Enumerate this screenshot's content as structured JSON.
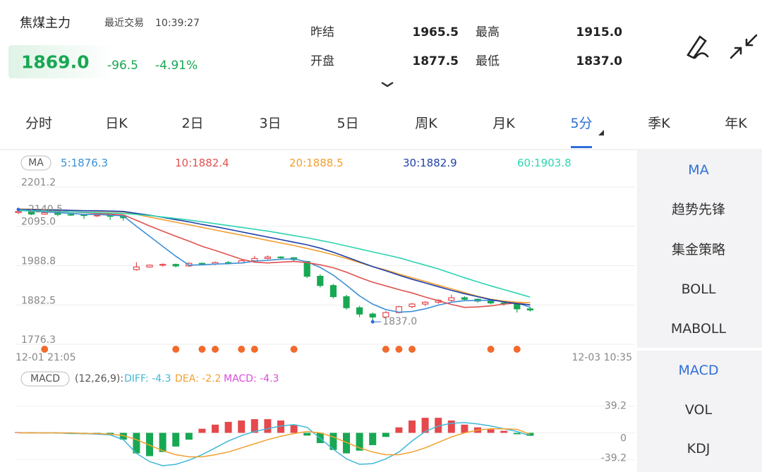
{
  "header": {
    "name": "焦煤主力",
    "recent_label": "最近交易",
    "time": "10:39:27",
    "price": "1869.0",
    "change": "-96.5",
    "change_pct": "-4.91%",
    "stats": [
      {
        "label": "昨结",
        "value": "1965.5"
      },
      {
        "label": "最高",
        "value": "1915.0"
      },
      {
        "label": "开盘",
        "value": "1877.5"
      },
      {
        "label": "最低",
        "value": "1837.0"
      }
    ]
  },
  "tabs": [
    "分时",
    "日K",
    "2日",
    "3日",
    "5日",
    "周K",
    "月K",
    "5分",
    "季K",
    "年K"
  ],
  "active_tab": 7,
  "side_menu": {
    "main": [
      "MA",
      "趋势先锋",
      "集金策略",
      "BOLL",
      "MABOLL"
    ],
    "sub": [
      "MACD",
      "VOL",
      "KDJ"
    ]
  },
  "chart_data": [
    {
      "type": "candlestick",
      "label": "MA",
      "x_labels": [
        "12-01 21:05",
        "12-03 10:35"
      ],
      "ylim": [
        1776.3,
        2201.2
      ],
      "yticks": [
        1776.3,
        1882.5,
        1988.8,
        {
          "value": 2095.0,
          "label": "2095.0"
        },
        2201.2
      ],
      "grid": true,
      "up_color": "#e5484d",
      "down_color": "#17a853",
      "candles": [
        [
          2132,
          2140.5,
          2128,
          2135
        ],
        [
          2135,
          2137,
          2125,
          2128
        ],
        [
          2128,
          2134,
          2126,
          2132
        ],
        [
          2132,
          2133,
          2122,
          2127
        ],
        [
          2127,
          2130,
          2123,
          2126
        ],
        [
          2126,
          2128,
          2115,
          2124
        ],
        [
          2124,
          2128,
          2120,
          2125
        ],
        [
          2125,
          2126,
          2112,
          2122
        ],
        [
          2122,
          2124,
          2110,
          2118
        ],
        [
          1978,
          1998,
          1975,
          1985
        ],
        [
          1985,
          1992,
          1983,
          1990
        ],
        [
          1990,
          1995,
          1986,
          1992
        ],
        [
          1992,
          1994,
          1984,
          1988
        ],
        [
          1988,
          1998,
          1986,
          1995
        ],
        [
          1995,
          1997,
          1989,
          1993
        ],
        [
          1993,
          2000,
          1990,
          1997
        ],
        [
          1997,
          2001,
          1992,
          1996
        ],
        [
          1996,
          2006,
          1994,
          2002
        ],
        [
          2002,
          2015,
          2000,
          2008
        ],
        [
          2008,
          2016,
          2005,
          2012
        ],
        [
          2012,
          2014,
          2006,
          2010
        ],
        [
          2010,
          2012,
          2000,
          2005
        ],
        [
          2000,
          2002,
          1955,
          1960
        ],
        [
          1960,
          1965,
          1930,
          1935
        ],
        [
          1935,
          1940,
          1900,
          1905
        ],
        [
          1905,
          1910,
          1870,
          1875
        ],
        [
          1875,
          1880,
          1850,
          1858
        ],
        [
          1858,
          1862,
          1837,
          1850
        ],
        [
          1850,
          1866,
          1846,
          1862
        ],
        [
          1862,
          1880,
          1860,
          1878
        ],
        [
          1878,
          1888,
          1874,
          1885
        ],
        [
          1885,
          1893,
          1880,
          1890
        ],
        [
          1890,
          1898,
          1886,
          1895
        ],
        [
          1895,
          1910,
          1892,
          1902
        ],
        [
          1902,
          1906,
          1894,
          1898
        ],
        [
          1898,
          1900,
          1889,
          1893
        ],
        [
          1893,
          1896,
          1884,
          1888
        ],
        [
          1888,
          1892,
          1880,
          1885
        ],
        [
          1885,
          1888,
          1862,
          1872
        ],
        [
          1872,
          1878,
          1865,
          1869
        ]
      ],
      "series": [
        {
          "name": "5:1876.3",
          "color": "#3d8fd6",
          "values": [
            2138,
            2136,
            2134,
            2132,
            2130,
            2127,
            2127,
            2125,
            2123,
            2095,
            2068,
            2041,
            2014,
            1990,
            1991,
            1993,
            1994,
            1996,
            2001,
            2003,
            2006,
            2007,
            1999,
            1984,
            1963,
            1936,
            1907,
            1885,
            1870,
            1863,
            1865,
            1872,
            1882,
            1890,
            1894,
            1895,
            1895,
            1893,
            1888,
            1876.3
          ]
        },
        {
          "name": "10:1882.4",
          "color": "#e0524f",
          "values": [
            2140,
            2139,
            2138,
            2136,
            2134,
            2132,
            2130,
            2128,
            2126,
            2111,
            2096,
            2082,
            2068,
            2055,
            2041,
            2030,
            2018,
            2006,
            1998,
            1996,
            1998,
            2000,
            1997,
            1991,
            1983,
            1971,
            1957,
            1944,
            1934,
            1924,
            1915,
            1904,
            1894,
            1884,
            1876,
            1877,
            1880,
            1885,
            1888,
            1882.4
          ]
        },
        {
          "name": "20:1888.5",
          "color": "#f0a030",
          "values": [
            2142,
            2141,
            2140,
            2139,
            2138,
            2137,
            2136,
            2135,
            2134,
            2127,
            2120,
            2113,
            2106,
            2099,
            2092,
            2085,
            2078,
            2071,
            2064,
            2057,
            2050,
            2043,
            2035,
            2027,
            2018,
            2008,
            1997,
            1986,
            1977,
            1966,
            1956,
            1946,
            1936,
            1926,
            1916,
            1906,
            1898,
            1893,
            1890,
            1888.5
          ]
        },
        {
          "name": "30:1882.9",
          "color": "#1f3fa8",
          "values": [
            2140,
            2140,
            2139,
            2139,
            2138,
            2137,
            2137,
            2136,
            2135,
            2130,
            2125,
            2119,
            2113,
            2107,
            2100,
            2094,
            2087,
            2080,
            2073,
            2066,
            2059,
            2052,
            2045,
            2036,
            2025,
            2012,
            1999,
            1986,
            1975,
            1963,
            1952,
            1942,
            1932,
            1922,
            1913,
            1905,
            1897,
            1891,
            1886,
            1882.9
          ]
        },
        {
          "name": "60:1903.8",
          "color": "#2dd4b0",
          "values": [
            2138,
            2137,
            2136,
            2135,
            2134,
            2133,
            2132,
            2131,
            2130,
            2127,
            2124,
            2120,
            2116,
            2112,
            2107,
            2102,
            2097,
            2092,
            2087,
            2082,
            2076,
            2070,
            2064,
            2057,
            2050,
            2042,
            2034,
            2026,
            2018,
            2010,
            2000,
            1990,
            1980,
            1968,
            1956,
            1945,
            1934,
            1924,
            1914,
            1903.8
          ]
        }
      ],
      "annotations": [
        {
          "x": 0,
          "y": 2140.5
        },
        {
          "x": 27,
          "y": 1837,
          "label": "1837.0"
        }
      ],
      "signals": {
        "color": "#f26b2d",
        "x": [
          2,
          12,
          14,
          15,
          17,
          18,
          21,
          28,
          29,
          30,
          36,
          38
        ]
      }
    },
    {
      "type": "macd",
      "label": "MACD",
      "params": "(12,26,9):",
      "ylim": [
        -50,
        50
      ],
      "yticks": [
        -39.2,
        0,
        39.2
      ],
      "series": [
        {
          "name": "MACD: -4.3",
          "type": "bar",
          "color": "#d94fd9",
          "up_color": "#e5484d",
          "down_color": "#17a853",
          "values": [
            1,
            1,
            0,
            -1,
            -1,
            -2,
            -2,
            -3,
            -10,
            -30,
            -34,
            -28,
            -20,
            -10,
            6,
            12,
            16,
            18,
            20,
            20,
            18,
            12,
            -4,
            -15,
            -25,
            -30,
            -26,
            -18,
            -6,
            8,
            18,
            22,
            22,
            18,
            12,
            8,
            5,
            3,
            -2,
            -4.3
          ]
        },
        {
          "name": "DIFF: -4.3",
          "type": "line",
          "color": "#3fb8d8",
          "values": [
            0,
            0,
            0,
            0,
            -1,
            -1,
            -2,
            -3,
            -10,
            -30,
            -42,
            -48,
            -46,
            -40,
            -32,
            -22,
            -12,
            -4,
            2,
            6,
            10,
            12,
            8,
            -8,
            -24,
            -38,
            -46,
            -45,
            -38,
            -28,
            -12,
            2,
            10,
            14,
            15,
            13,
            10,
            6,
            2,
            -4.3
          ]
        },
        {
          "name": "DEA: -2.2",
          "type": "line",
          "color": "#f0a030",
          "values": [
            0,
            0,
            0,
            0,
            0,
            -1,
            -1,
            -2,
            -4,
            -10,
            -18,
            -26,
            -32,
            -35,
            -35,
            -32,
            -28,
            -22,
            -16,
            -10,
            -5,
            -1,
            2,
            0,
            -6,
            -14,
            -22,
            -28,
            -32,
            -32,
            -28,
            -22,
            -14,
            -6,
            0,
            4,
            6,
            6,
            5,
            -2.2
          ]
        }
      ]
    }
  ]
}
